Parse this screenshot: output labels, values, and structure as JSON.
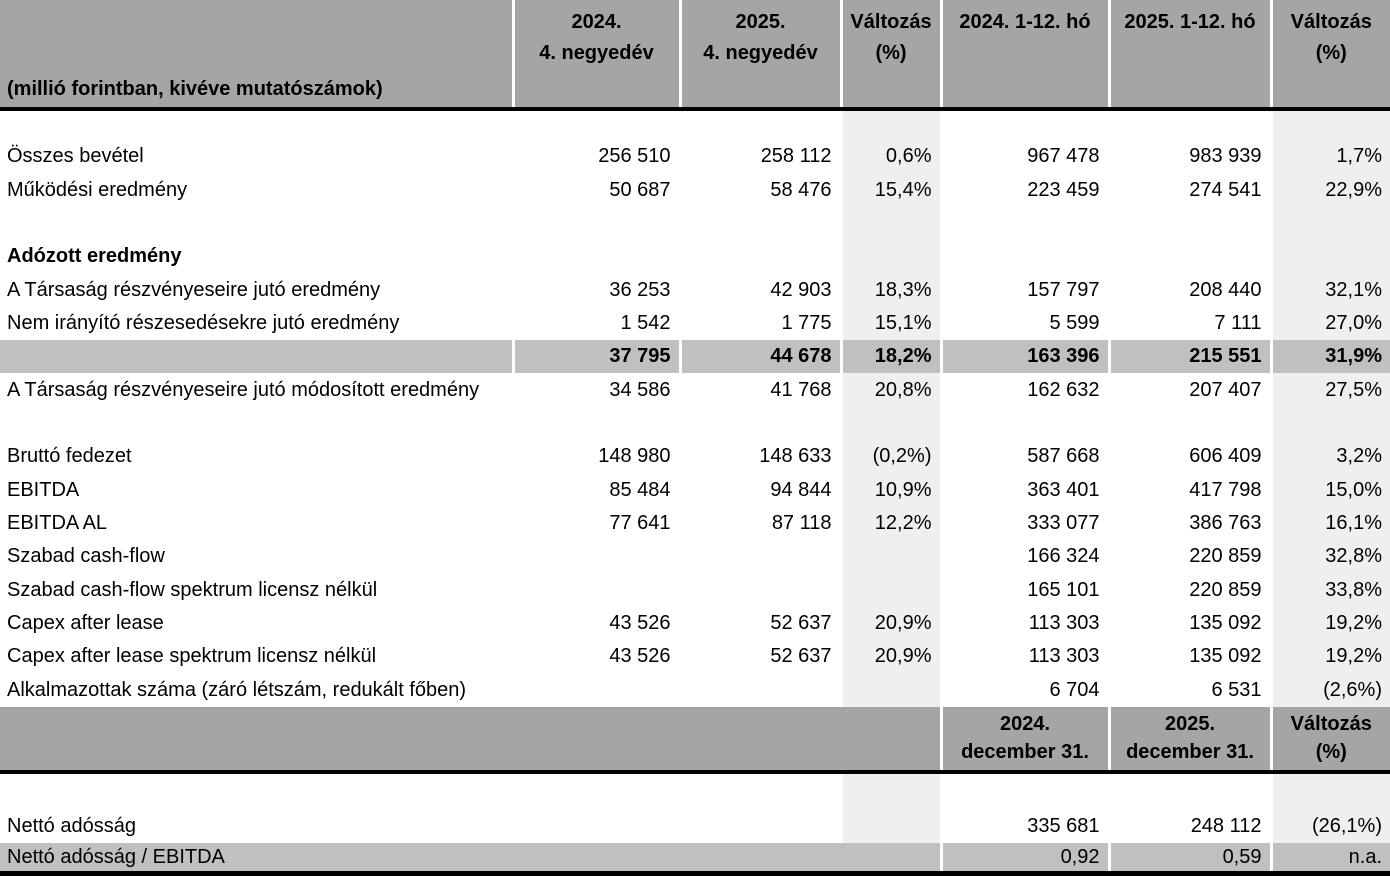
{
  "table": {
    "unit_note": "(millió forintban, kivéve mutatószámok)",
    "header_quarter": [
      {
        "line1": "2024.",
        "line2": "4. negyedév"
      },
      {
        "line1": "2025.",
        "line2": "4. negyedév"
      },
      {
        "line1": "Változás",
        "line2": "(%)"
      },
      {
        "line1": "2024. 1-12. hó",
        "line2": ""
      },
      {
        "line1": "2025. 1-12. hó",
        "line2": ""
      },
      {
        "line1": "Változás",
        "line2": "(%)"
      }
    ],
    "header_annual": [
      {
        "line1": "2024.",
        "line2": "december 31."
      },
      {
        "line1": "2025.",
        "line2": "december 31."
      },
      {
        "line1": "Változás",
        "line2": "(%)"
      }
    ],
    "rows_main": [
      {
        "style": "spacer",
        "label": "",
        "values": [
          "",
          "",
          "",
          "",
          "",
          ""
        ]
      },
      {
        "style": "data",
        "label": "Összes bevétel",
        "values": [
          "256 510",
          "258 112",
          "0,6%",
          "967 478",
          "983 939",
          "1,7%"
        ]
      },
      {
        "style": "data",
        "label": "Működési eredmény",
        "values": [
          "50 687",
          "58 476",
          "15,4%",
          "223 459",
          "274 541",
          "22,9%"
        ]
      },
      {
        "style": "empty",
        "label": "",
        "values": [
          "",
          "",
          "",
          "",
          "",
          ""
        ]
      },
      {
        "style": "section",
        "label": "Adózott eredmény",
        "values": [
          "",
          "",
          "",
          "",
          "",
          ""
        ]
      },
      {
        "style": "data",
        "label": "A Társaság részvényeseire jutó eredmény",
        "values": [
          "36 253",
          "42 903",
          "18,3%",
          "157 797",
          "208 440",
          "32,1%"
        ]
      },
      {
        "style": "data",
        "label": "Nem irányító részesedésekre jutó eredmény",
        "values": [
          "1 542",
          "1 775",
          "15,1%",
          "5 599",
          "7 111",
          "27,0%"
        ]
      },
      {
        "style": "total",
        "label": "",
        "values": [
          "37 795",
          "44 678",
          "18,2%",
          "163 396",
          "215 551",
          "31,9%"
        ]
      },
      {
        "style": "data",
        "label": "A Társaság részvényeseire jutó módosított eredmény",
        "values": [
          "34 586",
          "41 768",
          "20,8%",
          "162 632",
          "207 407",
          "27,5%"
        ]
      },
      {
        "style": "empty",
        "label": "",
        "values": [
          "",
          "",
          "",
          "",
          "",
          ""
        ]
      },
      {
        "style": "data",
        "label": "Bruttó fedezet",
        "values": [
          "148 980",
          "148 633",
          "(0,2%)",
          "587 668",
          "606 409",
          "3,2%"
        ]
      },
      {
        "style": "data",
        "label": "EBITDA",
        "values": [
          "85 484",
          "94 844",
          "10,9%",
          "363 401",
          "417 798",
          "15,0%"
        ]
      },
      {
        "style": "data",
        "label": "EBITDA AL",
        "values": [
          "77 641",
          "87 118",
          "12,2%",
          "333 077",
          "386 763",
          "16,1%"
        ]
      },
      {
        "style": "data",
        "label": "Szabad cash-flow",
        "values": [
          "",
          "",
          "",
          "166 324",
          "220 859",
          "32,8%"
        ]
      },
      {
        "style": "data",
        "label": "Szabad cash-flow spektrum licensz nélkül",
        "values": [
          "",
          "",
          "",
          "165 101",
          "220 859",
          "33,8%"
        ]
      },
      {
        "style": "data",
        "label": "Capex after lease",
        "values": [
          "43 526",
          "52 637",
          "20,9%",
          "113 303",
          "135 092",
          "19,2%"
        ]
      },
      {
        "style": "data",
        "label": "Capex after lease spektrum licensz nélkül",
        "values": [
          "43 526",
          "52 637",
          "20,9%",
          "113 303",
          "135 092",
          "19,2%"
        ]
      },
      {
        "style": "data",
        "label": "Alkalmazottak száma (záró létszám, redukált főben)",
        "values": [
          "",
          "",
          "",
          "6 704",
          "6 531",
          "(2,6%)"
        ]
      }
    ],
    "rows_bottom": [
      {
        "style": "spacer2",
        "label": "",
        "values": [
          "",
          "",
          "",
          "",
          "",
          ""
        ]
      },
      {
        "style": "data",
        "label": "Nettó adósság",
        "values": [
          "",
          "",
          "",
          "335 681",
          "248 112",
          "(26,1%)"
        ]
      },
      {
        "style": "grayband",
        "label": "Nettó adósság / EBITDA",
        "values": [
          "",
          "",
          "",
          "0,92",
          "0,59",
          "n.a."
        ]
      }
    ],
    "colors": {
      "header_bg": "#a5a5a5",
      "total_row_bg": "#c0c0c0",
      "stripe_bg": "#efefef",
      "rule": "#000000",
      "background": "#ffffff"
    }
  }
}
